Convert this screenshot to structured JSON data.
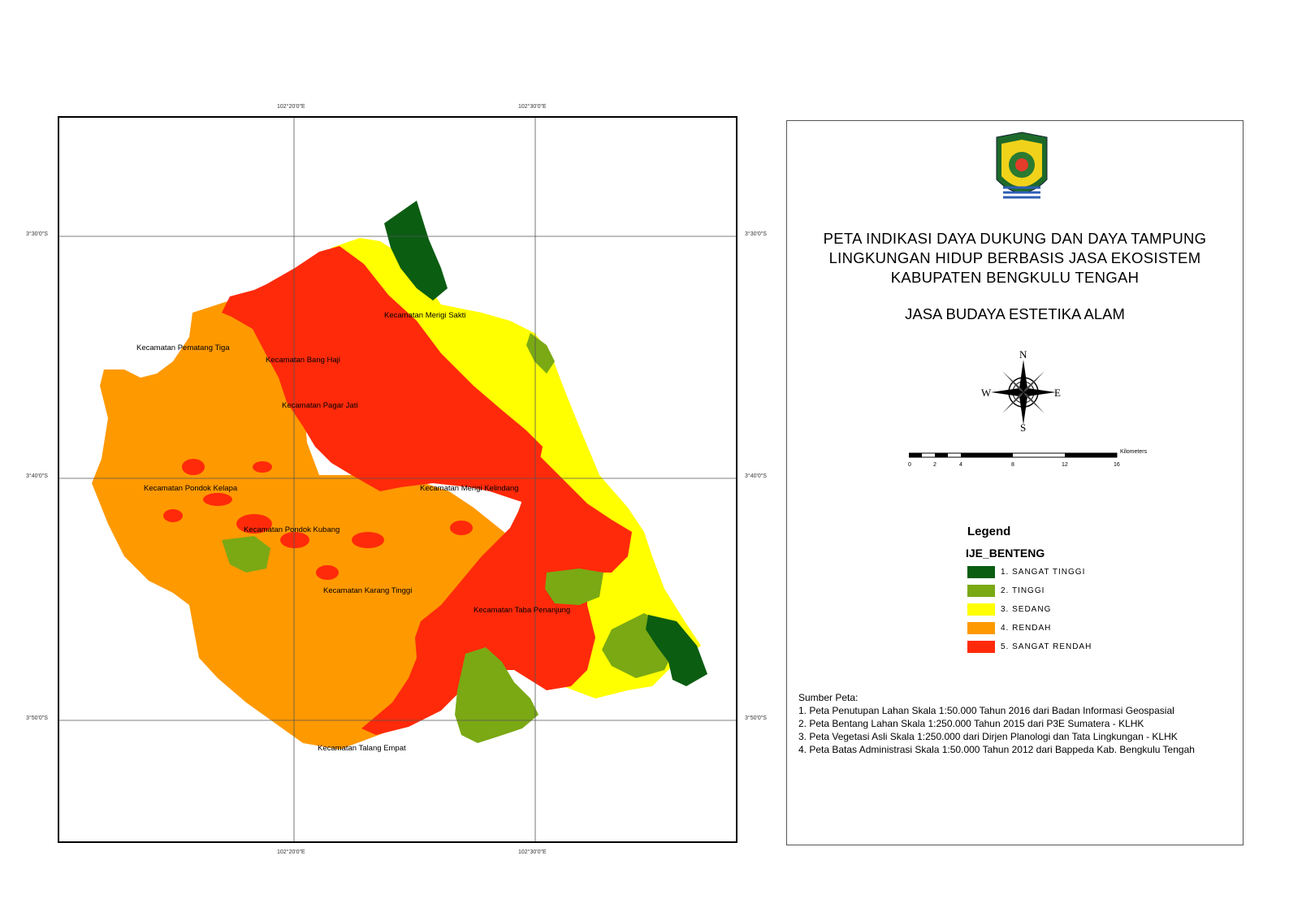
{
  "map": {
    "coords_top": [
      "102°20'0\"E",
      "102°30'0\"E"
    ],
    "coords_bottom": [
      "102°20'0\"E",
      "102°30'0\"E"
    ],
    "coords_left": [
      "3°30'0\"S",
      "3°40'0\"S",
      "3°50'0\"S"
    ],
    "coords_right": [
      "3°30'0\"S",
      "3°40'0\"S",
      "3°50'0\"S"
    ],
    "districts": [
      "Kecamatan Merigi Sakti",
      "Kecamatan Pematang Tiga",
      "Kecamatan Bang Haji",
      "Kecamatan Pagar Jati",
      "Kecamatan Pondok Kelapa",
      "Kecamatan Merigi Kelindang",
      "Kecamatan Pondok Kubang",
      "Kecamatan Karang Tinggi",
      "Kecamatan Taba Penanjung",
      "Kecamatan Talang Empat"
    ]
  },
  "panel": {
    "title_lines": [
      "PETA INDIKASI DAYA DUKUNG DAN DAYA TAMPUNG",
      "LINGKUNGAN HIDUP BERBASIS JASA EKOSISTEM",
      "KABUPATEN BENGKULU TENGAH"
    ],
    "subtitle": "JASA BUDAYA ESTETIKA ALAM",
    "compass": {
      "n": "N",
      "s": "S",
      "e": "E",
      "w": "W"
    },
    "scale": {
      "unit": "Kilometers",
      "ticks": [
        "0",
        "2",
        "4",
        "8",
        "12",
        "16"
      ]
    },
    "legend_heading": "Legend",
    "legend_layer": "IJE_BENTENG",
    "legend_items": [
      {
        "label": "1. SANGAT TINGGI",
        "color": "#0b5d12"
      },
      {
        "label": "2. TINGGI",
        "color": "#7aa914"
      },
      {
        "label": "3. SEDANG",
        "color": "#ffff00"
      },
      {
        "label": "4. RENDAH",
        "color": "#ff9900"
      },
      {
        "label": "5. SANGAT RENDAH",
        "color": "#ff2a0a"
      }
    ],
    "sources_title": "Sumber Peta:",
    "sources": [
      "1. Peta Penutupan Lahan Skala 1:50.000 Tahun 2016 dari Badan Informasi Geospasial",
      "2. Peta Bentang Lahan Skala 1:250.000 Tahun 2015 dari  P3E Sumatera - KLHK",
      "3. Peta Vegetasi Asli Skala 1:250.000 dari Dirjen Planologi dan Tata Lingkungan - KLHK",
      "4. Peta Batas Administrasi Skala 1:50.000 Tahun 2012 dari Bappeda Kab. Bengkulu Tengah"
    ]
  }
}
